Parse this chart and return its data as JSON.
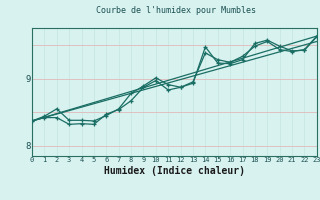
{
  "title": "Courbe de l'humidex pour Mumbles",
  "xlabel": "Humidex (Indice chaleur)",
  "bg_color": "#d8f2f0",
  "line_color": "#1a6e64",
  "grid_color_v": "#c8e8e4",
  "grid_color_h": "#e0b8b8",
  "xmin": 0,
  "xmax": 23,
  "ymin": 7.85,
  "ymax": 9.75,
  "line1": [
    8.37,
    8.42,
    8.42,
    8.32,
    8.33,
    8.32,
    8.47,
    8.54,
    8.67,
    8.87,
    8.97,
    8.83,
    8.87,
    8.93,
    9.47,
    9.23,
    9.22,
    9.28,
    9.52,
    9.57,
    9.48,
    9.41,
    9.42,
    9.62
  ],
  "line2": [
    8.37,
    8.44,
    8.55,
    8.38,
    8.38,
    8.37,
    8.45,
    8.55,
    8.78,
    8.89,
    9.01,
    8.91,
    8.87,
    8.95,
    9.38,
    9.28,
    9.24,
    9.33,
    9.48,
    9.55,
    9.43,
    9.4,
    9.43,
    9.63
  ],
  "trend1_x": [
    0,
    23
  ],
  "trend1_y": [
    8.37,
    9.63
  ],
  "trend2_x": [
    0,
    23
  ],
  "trend2_y": [
    8.37,
    9.55
  ]
}
